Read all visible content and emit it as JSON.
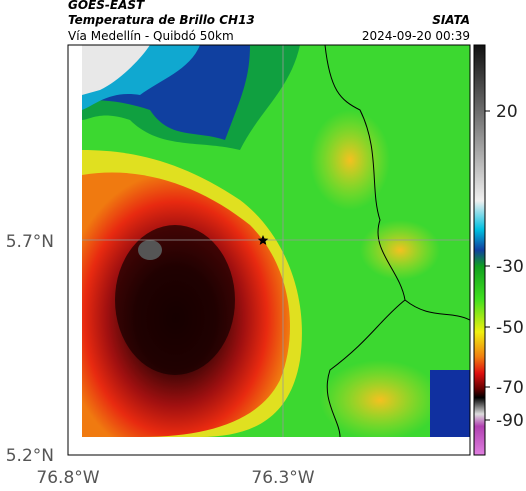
{
  "header": {
    "title": "GOES-EAST",
    "subtitle": "Temperatura de Brillo CH13",
    "location": "Vía Medellín - Quibdó 50km",
    "source": "SIATA",
    "timestamp": "2024-09-20 00:39"
  },
  "map": {
    "lat_labels": [
      "5.7°N",
      "5.2°N"
    ],
    "lon_labels": [
      "76.8°W",
      "76.3°W"
    ]
  },
  "colorbar": {
    "ticks": [
      20,
      -30,
      -50,
      -70,
      -90
    ]
  }
}
